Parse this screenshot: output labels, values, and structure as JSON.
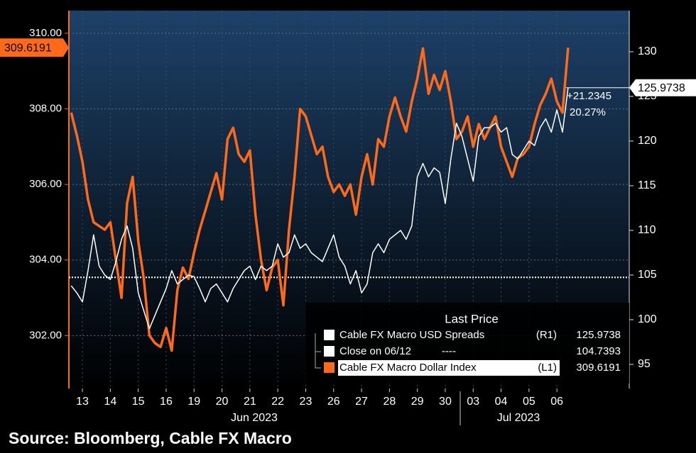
{
  "chart_data": {
    "type": "line",
    "categories": [
      null,
      null,
      "13",
      null,
      null,
      null,
      null,
      "14",
      null,
      null,
      null,
      null,
      "15",
      null,
      null,
      null,
      null,
      "16",
      null,
      null,
      null,
      null,
      "19",
      null,
      null,
      null,
      null,
      "20",
      null,
      null,
      null,
      null,
      "21",
      null,
      null,
      null,
      null,
      "22",
      null,
      null,
      null,
      null,
      "23",
      null,
      null,
      null,
      null,
      "26",
      null,
      null,
      null,
      null,
      "27",
      null,
      null,
      null,
      null,
      "28",
      null,
      null,
      null,
      null,
      "29",
      null,
      null,
      null,
      null,
      "30",
      null,
      null,
      null,
      null,
      "03",
      null,
      null,
      null,
      null,
      "04",
      null,
      null,
      null,
      null,
      "05",
      null,
      null,
      null,
      null,
      "06",
      null,
      null
    ],
    "months": [
      "Jun 2023",
      "Jul 2023"
    ],
    "series": [
      {
        "name": "Cable FX Macro Dollar Index",
        "axis_label": "(L1)",
        "color": "#ff6a1a",
        "axis": "y",
        "values": [
          307.9,
          307.3,
          306.6,
          305.6,
          305.0,
          304.9,
          304.8,
          305.0,
          304.0,
          303.0,
          305.5,
          306.2,
          304.5,
          303.5,
          302.0,
          301.8,
          301.7,
          302.2,
          301.6,
          303.2,
          303.8,
          303.5,
          304.2,
          304.8,
          305.3,
          305.8,
          306.3,
          305.6,
          307.2,
          307.5,
          306.8,
          306.6,
          306.9,
          305.2,
          304.0,
          303.2,
          303.8,
          304.0,
          302.8,
          304.8,
          306.2,
          308.0,
          307.8,
          307.3,
          306.8,
          307.0,
          306.2,
          305.8,
          306.0,
          305.7,
          306.0,
          305.2,
          306.2,
          306.8,
          306.0,
          307.2,
          307.0,
          307.8,
          308.3,
          307.8,
          307.4,
          308.2,
          308.8,
          309.6,
          308.4,
          308.9,
          308.5,
          309.0,
          308.2,
          307.2,
          307.4,
          307.8,
          307.0,
          307.6,
          307.2,
          307.5,
          307.8,
          307.0,
          306.6,
          306.2,
          306.7,
          306.8,
          307.0,
          307.6,
          308.1,
          308.4,
          308.8,
          308.2,
          307.9,
          309.6191
        ]
      },
      {
        "name": "Cable FX Macro USD Spreads",
        "axis_label": "(R1)",
        "color": "#ffffff",
        "axis": "y2",
        "values": [
          103.8,
          103.0,
          102.0,
          105.5,
          109.5,
          106.0,
          105.0,
          104.5,
          106.5,
          109.0,
          110.5,
          108.0,
          103.0,
          101.0,
          99.0,
          100.5,
          102.0,
          103.5,
          105.5,
          104.0,
          104.5,
          105.0,
          104.8,
          103.5,
          102.0,
          103.5,
          104.0,
          103.0,
          102.0,
          103.5,
          104.5,
          105.5,
          106.0,
          104.5,
          106.0,
          105.5,
          106.0,
          108.5,
          107.0,
          107.5,
          109.5,
          108.0,
          108.5,
          107.5,
          107.0,
          106.5,
          108.0,
          109.5,
          107.0,
          106.0,
          104.0,
          105.5,
          103.0,
          104.0,
          107.5,
          108.5,
          107.5,
          109.0,
          109.5,
          110.0,
          109.0,
          110.5,
          116.0,
          117.5,
          116.0,
          117.0,
          116.5,
          113.0,
          118.0,
          122.0,
          120.5,
          118.0,
          115.5,
          120.5,
          121.5,
          121.5,
          122.0,
          121.0,
          121.5,
          118.5,
          118.0,
          119.0,
          120.0,
          119.5,
          121.5,
          122.5,
          121.0,
          123.5,
          121.0,
          125.9738
        ]
      }
    ],
    "reference": {
      "name": "Close on 06/12",
      "style_label": "----",
      "value": 104.7393,
      "axis": "y2"
    },
    "legend_title": "Last Price",
    "annotations": [
      "+21.2345",
      "20.27%"
    ],
    "ylim": [
      300.6,
      310.6
    ],
    "yticks": [
      {
        "value": 302,
        "label": "302.00"
      },
      {
        "value": 304,
        "label": "304.00"
      },
      {
        "value": 306,
        "label": "306.00"
      },
      {
        "value": 308,
        "label": "308.00"
      },
      {
        "value": 310,
        "label": "310.00"
      }
    ],
    "y2lim": [
      92.3,
      134.6
    ],
    "y2ticks": [
      95,
      100,
      105,
      110,
      115,
      120,
      125,
      130
    ],
    "grid": true,
    "source": "Source: Bloomberg, Cable FX Macro"
  }
}
